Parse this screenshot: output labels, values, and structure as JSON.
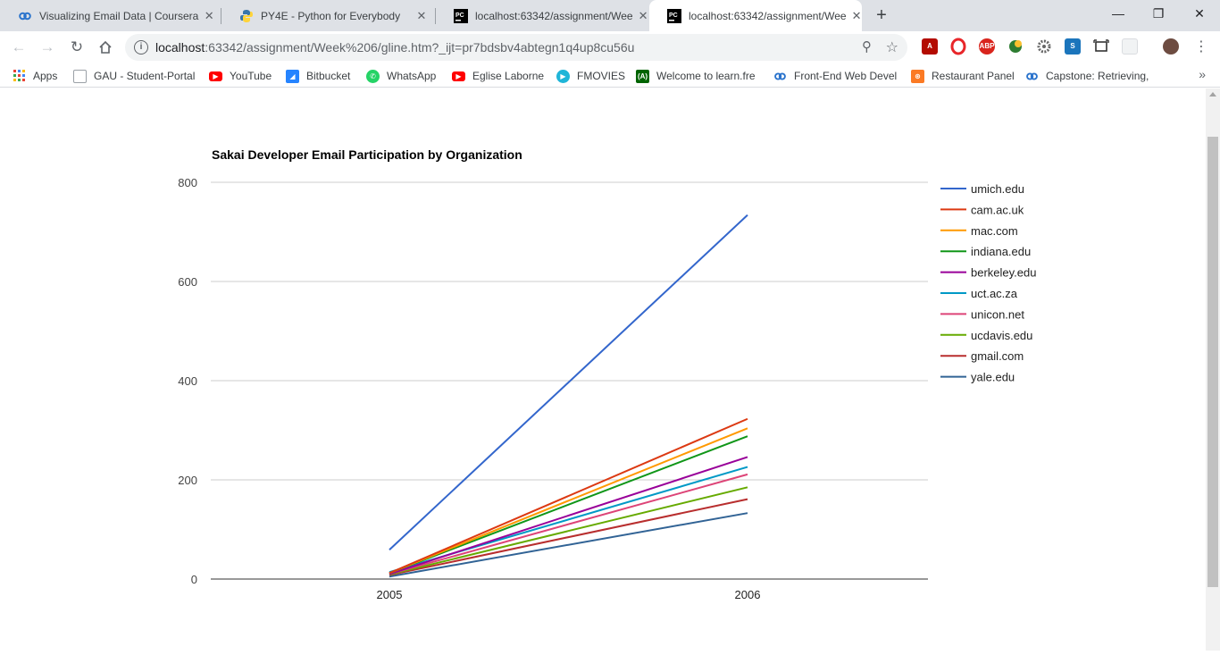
{
  "browser": {
    "tabs": [
      {
        "title": "Visualizing Email Data | Coursera",
        "icon": "coursera-icon"
      },
      {
        "title": "PY4E - Python for Everybody",
        "icon": "python-icon"
      },
      {
        "title": "localhost:63342/assignment/Wee",
        "icon": "pycharm-icon"
      },
      {
        "title": "localhost:63342/assignment/Wee",
        "icon": "pycharm-icon",
        "active": true
      }
    ],
    "url_host": "localhost",
    "url_rest": ":63342/assignment/Week%206/gline.htm?_ijt=pr7bdsbv4abtegn1q4up8cu56u",
    "bookmarks": [
      {
        "label": "Apps",
        "icon": "apps-grid-icon"
      },
      {
        "label": "GAU - Student-Portal",
        "icon": "document-icon"
      },
      {
        "label": "YouTube",
        "icon": "youtube-icon",
        "color": "#ff0000"
      },
      {
        "label": "Bitbucket",
        "icon": "bitbucket-icon",
        "color": "#2684ff"
      },
      {
        "label": "WhatsApp",
        "icon": "whatsapp-icon",
        "color": "#25d366"
      },
      {
        "label": "Eglise Laborne",
        "icon": "youtube-icon",
        "color": "#ff0000"
      },
      {
        "label": "FMOVIES",
        "icon": "play-icon",
        "color": "#1fb5d8"
      },
      {
        "label": "Welcome to learn.fre",
        "icon": "freecodecamp-icon",
        "color": "#006400"
      },
      {
        "label": "Front-End Web Devel",
        "icon": "coursera-icon",
        "color": "#2a73cc"
      },
      {
        "label": "Restaurant Panel",
        "icon": "xampp-icon",
        "color": "#fb7a24"
      },
      {
        "label": "Capstone: Retrieving,",
        "icon": "coursera-icon",
        "color": "#2a73cc"
      }
    ],
    "bookmarks_more": "»"
  },
  "chart_data": {
    "type": "line",
    "title": "Sakai Developer Email Participation by Organization",
    "categories": [
      "2005",
      "2006"
    ],
    "ylim": [
      0,
      800
    ],
    "yticks": [
      0,
      200,
      400,
      600,
      800
    ],
    "grid": true,
    "legend_position": "right",
    "series": [
      {
        "name": "umich.edu",
        "color": "#3366cc",
        "values": [
          59,
          734
        ]
      },
      {
        "name": "cam.ac.uk",
        "color": "#dc3912",
        "values": [
          12,
          323
        ]
      },
      {
        "name": "mac.com",
        "color": "#ff9900",
        "values": [
          12,
          304
        ]
      },
      {
        "name": "indiana.edu",
        "color": "#109618",
        "values": [
          12,
          288
        ]
      },
      {
        "name": "berkeley.edu",
        "color": "#990099",
        "values": [
          10,
          246
        ]
      },
      {
        "name": "uct.ac.za",
        "color": "#0099c6",
        "values": [
          14,
          226
        ]
      },
      {
        "name": "unicon.net",
        "color": "#dd4477",
        "values": [
          10,
          211
        ]
      },
      {
        "name": "ucdavis.edu",
        "color": "#66aa00",
        "values": [
          9,
          185
        ]
      },
      {
        "name": "gmail.com",
        "color": "#b82e2e",
        "values": [
          8,
          161
        ]
      },
      {
        "name": "yale.edu",
        "color": "#316395",
        "values": [
          5,
          133
        ]
      }
    ]
  }
}
